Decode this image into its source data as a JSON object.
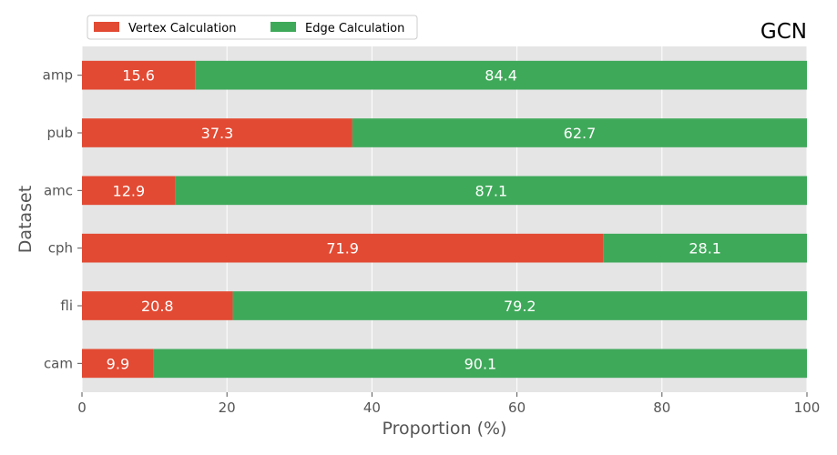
{
  "chart_data": {
    "type": "bar",
    "orientation": "horizontal",
    "stacked": true,
    "title": "GCN",
    "xlabel": "Proportion (%)",
    "ylabel": "Dataset",
    "xlim": [
      0,
      100
    ],
    "xticks": [
      0,
      20,
      40,
      60,
      80,
      100
    ],
    "grid": true,
    "legend_position": "top-left",
    "categories": [
      "amp",
      "pub",
      "amc",
      "cph",
      "fli",
      "cam"
    ],
    "series": [
      {
        "name": "Vertex Calculation",
        "color": "#e24a33",
        "values": [
          15.6,
          37.3,
          12.9,
          71.9,
          20.8,
          9.9
        ]
      },
      {
        "name": "Edge Calculation",
        "color": "#3fa95a",
        "values": [
          84.4,
          62.7,
          87.1,
          28.1,
          79.2,
          90.1
        ]
      }
    ]
  }
}
